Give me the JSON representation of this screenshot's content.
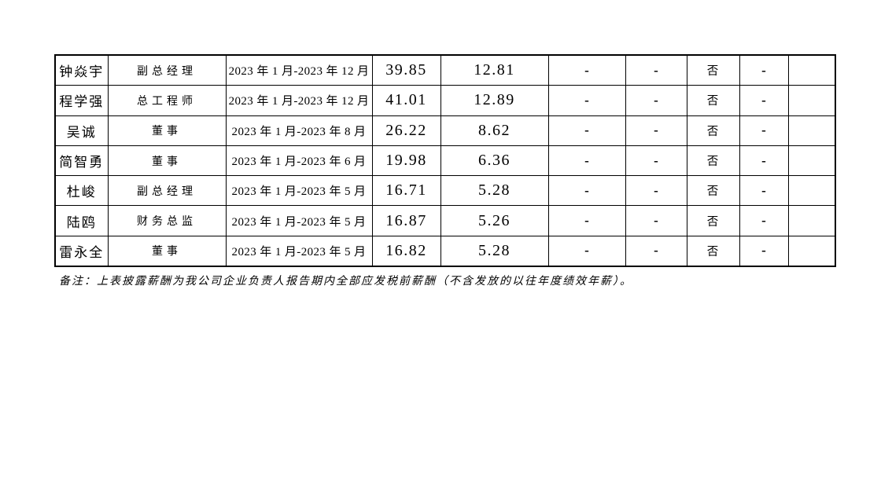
{
  "page": {
    "background": "#ffffff",
    "text_color": "#000000",
    "border_color": "#000000"
  },
  "table": {
    "column_keys": [
      "name",
      "position",
      "period",
      "value-a",
      "value-b",
      "dash-a",
      "dash-b",
      "flag",
      "dash-c",
      "blank"
    ],
    "rows": [
      [
        "钟焱宇",
        "副总经理",
        "2023 年 1 月-2023 年 12 月",
        "39.85",
        "12.81",
        "-",
        "-",
        "否",
        "-",
        ""
      ],
      [
        "程学强",
        "总工程师",
        "2023 年 1 月-2023 年 12 月",
        "41.01",
        "12.89",
        "-",
        "-",
        "否",
        "-",
        ""
      ],
      [
        "吴诚",
        "董事",
        "2023 年 1 月-2023 年 8 月",
        "26.22",
        "8.62",
        "-",
        "-",
        "否",
        "-",
        ""
      ],
      [
        "简智勇",
        "董事",
        "2023 年 1 月-2023 年 6 月",
        "19.98",
        "6.36",
        "-",
        "-",
        "否",
        "-",
        ""
      ],
      [
        "杜峻",
        "副总经理",
        "2023 年 1 月-2023 年 5 月",
        "16.71",
        "5.28",
        "-",
        "-",
        "否",
        "-",
        ""
      ],
      [
        "陆鸥",
        "财务总监",
        "2023 年 1 月-2023 年 5 月",
        "16.87",
        "5.26",
        "-",
        "-",
        "否",
        "-",
        ""
      ],
      [
        "雷永全",
        "董事",
        "2023 年 1 月-2023 年 5 月",
        "16.82",
        "5.28",
        "-",
        "-",
        "否",
        "-",
        ""
      ]
    ]
  },
  "note": "备注：上表披露薪酬为我公司企业负责人报告期内全部应发税前薪酬（不含发放的以往年度绩效年薪）。"
}
